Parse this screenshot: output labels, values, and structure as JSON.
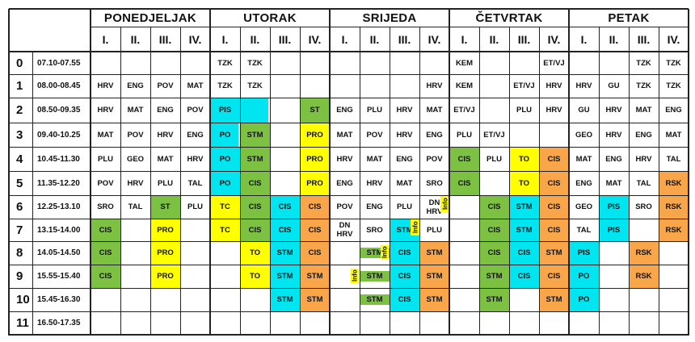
{
  "colors": {
    "green": "#7cc142",
    "yellow": "#ffff00",
    "cyan": "#00e5f0",
    "orange": "#f9a64a"
  },
  "days": [
    "PONEDJELJAK",
    "UTORAK",
    "SRIJEDA",
    "ČETVRTAK",
    "PETAK"
  ],
  "sessions": [
    "I.",
    "II.",
    "III.",
    "IV."
  ],
  "periods": [
    {
      "num": "0",
      "time": "07.10-07.55"
    },
    {
      "num": "1",
      "time": "08.00-08.45"
    },
    {
      "num": "2",
      "time": "08.50-09.35"
    },
    {
      "num": "3",
      "time": "09.40-10.25"
    },
    {
      "num": "4",
      "time": "10.45-11.30"
    },
    {
      "num": "5",
      "time": "11.35-12.20"
    },
    {
      "num": "6",
      "time": "12.25-13.10"
    },
    {
      "num": "7",
      "time": "13.15-14.00"
    },
    {
      "num": "8",
      "time": "14.05-14.50"
    },
    {
      "num": "9",
      "time": "15.55-15.40"
    },
    {
      "num": "10",
      "time": "15.45-16.30"
    },
    {
      "num": "11",
      "time": "16.50-17.35"
    }
  ],
  "timetable": [
    [
      "",
      "",
      "",
      "",
      "TZK",
      "TZK",
      "",
      "",
      "",
      "",
      "",
      "",
      "KEM",
      "",
      "",
      "ET/VJ",
      "",
      "",
      "TZK",
      "TZK"
    ],
    [
      "HRV",
      "ENG",
      "POV",
      "MAT",
      "TZK",
      "TZK",
      "",
      "",
      "",
      "",
      "",
      "HRV",
      "KEM",
      "",
      "ET/VJ",
      "HRV",
      "HRV",
      "GU",
      "TZK",
      "TZK"
    ],
    [
      "HRV",
      "MAT",
      "ENG",
      "POV",
      "PIS",
      "",
      "",
      "ST",
      "ENG",
      "PLU",
      "HRV",
      "MAT",
      "ET/VJ",
      "",
      "PLU",
      "HRV",
      "GU",
      "HRV",
      "MAT",
      "ENG"
    ],
    [
      "MAT",
      "POV",
      "HRV",
      "ENG",
      "PO",
      "STM",
      "",
      "PRO",
      "MAT",
      "POV",
      "HRV",
      "ENG",
      "PLU",
      "ET/VJ",
      "",
      "",
      "GEO",
      "HRV",
      "ENG",
      "MAT"
    ],
    [
      "PLU",
      "GEO",
      "MAT",
      "HRV",
      "PO",
      "STM",
      "",
      "PRO",
      "HRV",
      "MAT",
      "ENG",
      "POV",
      "CIS",
      "PLU",
      "TO",
      "CIS",
      "MAT",
      "ENG",
      "HRV",
      "TAL"
    ],
    [
      "POV",
      "HRV",
      "PLU",
      "TAL",
      "PO",
      "CIS",
      "",
      "PRO",
      "ENG",
      "HRV",
      "MAT",
      "SRO",
      "CIS",
      "",
      "TO",
      "CIS",
      "ENG",
      "MAT",
      "TAL",
      "RSK"
    ],
    [
      "SRO",
      "TAL",
      "ST",
      "PLU",
      "TC",
      "CIS",
      "CIS",
      "CIS",
      "POV",
      "ENG",
      "PLU",
      "DN\nHRV",
      "",
      "CIS",
      "STM",
      "CIS",
      "GEO",
      "PIS",
      "SRO",
      "RSK"
    ],
    [
      "CIS",
      "",
      "PRO",
      "",
      "TC",
      "CIS",
      "CIS",
      "CIS",
      "DN\nHRV",
      "SRO",
      "STM",
      "PLU",
      "",
      "CIS",
      "STM",
      "CIS",
      "TAL",
      "PIS",
      "",
      "RSK"
    ],
    [
      "CIS",
      "",
      "PRO",
      "",
      "",
      "TO",
      "STM",
      "CIS",
      "",
      "STM",
      "CIS",
      "STM",
      "",
      "CIS",
      "CIS",
      "STM",
      "PIS",
      "",
      "RSK",
      ""
    ],
    [
      "CIS",
      "",
      "PRO",
      "",
      "",
      "TO",
      "STM",
      "STM",
      "",
      "STM",
      "CIS",
      "STM",
      "",
      "STM",
      "CIS",
      "CIS",
      "PO",
      "",
      "RSK",
      ""
    ],
    [
      "",
      "",
      "",
      "",
      "",
      "",
      "STM",
      "STM",
      "",
      "STM",
      "CIS",
      "STM",
      "",
      "STM",
      "",
      "STM",
      "PO",
      "",
      "",
      ""
    ],
    [
      "",
      "",
      "",
      "",
      "",
      "",
      "",
      "",
      "",
      "",
      "",
      "",
      "",
      "",
      "",
      "",
      "",
      "",
      "",
      ""
    ]
  ],
  "info_label": "Info"
}
